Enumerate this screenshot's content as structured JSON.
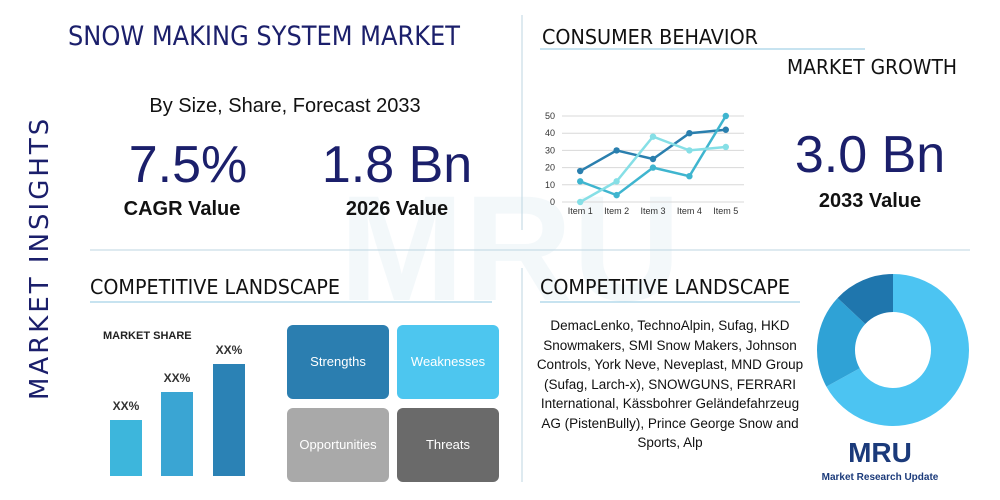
{
  "header": {
    "title": "SNOW MAKING SYSTEM MARKET",
    "side_label": "MARKET INSIGHTS",
    "subtitle": "By Size, Share, Forecast 2033"
  },
  "stats": [
    {
      "value": "7.5%",
      "label": "CAGR Value"
    },
    {
      "value": "1.8 Bn",
      "label": "2026 Value"
    },
    {
      "value": "3.0 Bn",
      "label": "2033 Value"
    }
  ],
  "consumer": {
    "title": "CONSUMER BEHAVIOR",
    "subtitle": "MARKET GROWTH",
    "chart": {
      "type": "line",
      "categories": [
        "Item 1",
        "Item 2",
        "Item 3",
        "Item 4",
        "Item 5"
      ],
      "series": [
        {
          "color": "#2a7fae",
          "values": [
            18,
            30,
            25,
            40,
            42
          ]
        },
        {
          "color": "#3fb5cf",
          "values": [
            12,
            4,
            20,
            15,
            50
          ]
        },
        {
          "color": "#86dfe6",
          "values": [
            0,
            12,
            38,
            30,
            32
          ]
        }
      ],
      "ylim": [
        0,
        50
      ],
      "yticks": [
        0,
        10,
        20,
        30,
        40,
        50
      ],
      "grid": true
    }
  },
  "competitive": {
    "title": "COMPETITIVE LANDSCAPE",
    "chart": {
      "type": "bar",
      "title": "MARKET SHARE",
      "colors": [
        "#3db6dc",
        "#3aa5d3",
        "#2b82b5"
      ],
      "values": [
        20,
        30,
        40
      ],
      "value_labels": [
        "XX%",
        "XX%",
        "XX%"
      ]
    },
    "swot": [
      "Strengths",
      "Weaknesses",
      "Opportunities",
      "Threats"
    ]
  },
  "players": {
    "title": "COMPETITIVE LANDSCAPE",
    "text": "DemacLenko, TechnoAlpin, Sufag, HKD Snowmakers, SMI Snow Makers, Johnson Controls, York Neve, Neveplast, MND Group (Sufag, Larch-x), SNOWGUNS, FERRARI International, Kässbohrer Geländefahrzeug AG (PistenBully), Prince George Snow and Sports, Alp"
  },
  "donut": {
    "type": "pie",
    "colors": [
      "#4cc4f2",
      "#2fa2d6",
      "#1f76ad"
    ],
    "values": [
      67,
      20,
      13
    ]
  },
  "logo": {
    "mark": "MRU",
    "name": "Market Research Update"
  }
}
